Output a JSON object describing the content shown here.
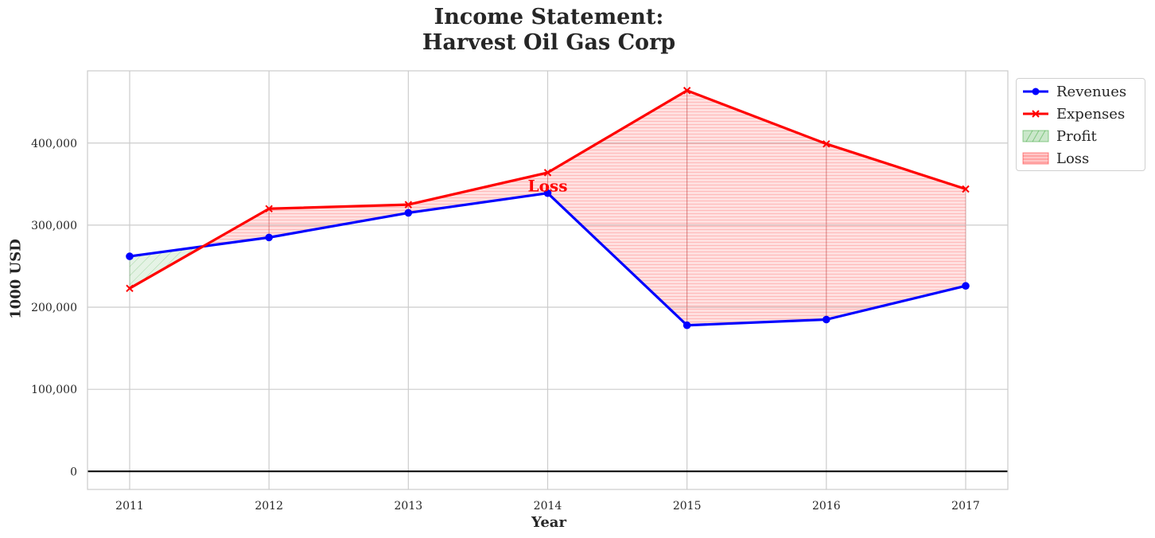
{
  "chart_data": {
    "type": "line",
    "title_line1": "Income Statement:",
    "title_line2": "Harvest Oil Gas Corp",
    "xlabel": "Year",
    "ylabel": "1000 USD",
    "categories": [
      "2011",
      "2012",
      "2013",
      "2014",
      "2015",
      "2016",
      "2017"
    ],
    "y_ticks": [
      0,
      100000,
      200000,
      300000,
      400000
    ],
    "y_tick_labels": [
      "0",
      "100,000",
      "200,000",
      "300,000",
      "400,000"
    ],
    "ylim": [
      -22000,
      488000
    ],
    "series": [
      {
        "name": "Revenues",
        "values": [
          262000,
          285000,
          315000,
          339000,
          178000,
          185000,
          226000
        ],
        "color": "#0000ff",
        "marker": "circle"
      },
      {
        "name": "Expenses",
        "values": [
          223000,
          320000,
          325000,
          364000,
          464000,
          399000,
          344000
        ],
        "color": "#ff0000",
        "marker": "x"
      }
    ],
    "fills": [
      {
        "name": "Profit",
        "color": "#2ca02c",
        "condition": "revenues > expenses"
      },
      {
        "name": "Loss",
        "color": "#ff0000",
        "condition": "expenses > revenues"
      }
    ],
    "annotations": [
      {
        "text": "Loss",
        "x": "2014",
        "y": 348000,
        "color": "#ff0000"
      }
    ],
    "zero_line": true,
    "grid": true,
    "legend_position": "outside-top-right"
  }
}
